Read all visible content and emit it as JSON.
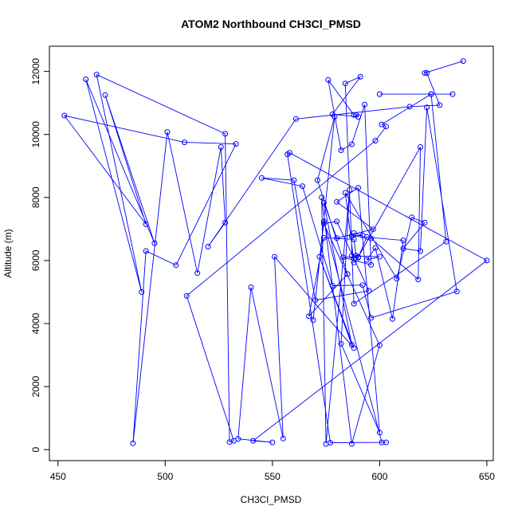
{
  "chart_data": {
    "type": "scatter",
    "title": "ATOM2 Northbound CH3Cl_PMSD",
    "xlabel": "CH3Cl_PMSD",
    "ylabel": "Altitude (m)",
    "xlim": [
      446,
      653
    ],
    "ylim": [
      -350,
      12800
    ],
    "xticks": [
      450,
      500,
      550,
      600,
      650
    ],
    "yticks": [
      0,
      2000,
      4000,
      6000,
      8000,
      10000,
      12000
    ],
    "grid": false,
    "legend": "none",
    "series": [
      {
        "connected": true,
        "color": "#0000ff",
        "marker": "open-circle",
        "x": [
          639,
          621,
          622,
          628,
          614,
          561,
          520,
          528,
          526,
          515,
          501,
          485,
          491,
          505,
          533,
          509,
          453,
          491,
          472,
          495,
          463,
          489,
          468,
          528,
          530,
          532,
          510,
          598,
          603,
          601,
          624,
          634,
          600,
          624,
          631,
          588,
          584,
          591,
          578,
          590,
          589,
          588,
          576,
          582,
          587,
          593,
          596,
          583,
          590,
          619,
          618,
          596,
          594,
          590,
          588,
          584,
          608,
          615,
          621,
          611,
          619,
          622,
          636,
          596,
          592,
          578,
          564,
          545,
          560,
          570,
          595,
          580,
          574,
          600,
          587,
          573,
          575,
          586,
          582,
          600,
          590,
          580,
          597,
          580,
          574,
          587,
          572,
          588,
          551,
          555,
          540,
          534,
          550,
          541,
          650,
          558,
          557,
          577,
          603,
          601,
          574,
          569,
          579,
          571,
          585,
          567,
          574,
          588,
          589,
          587,
          600,
          594,
          598,
          606,
          611,
          587,
          592,
          588
        ],
        "y": [
          12330,
          11950,
          11950,
          10930,
          10880,
          10490,
          6440,
          7200,
          9600,
          5600,
          10080,
          200,
          6300,
          5850,
          9700,
          9750,
          10600,
          7150,
          11250,
          6550,
          11750,
          5000,
          11900,
          10020,
          240,
          280,
          4880,
          9800,
          10250,
          10320,
          11280,
          11280,
          11280,
          11280,
          6600,
          4630,
          11620,
          11830,
          10640,
          10560,
          10620,
          10620,
          11730,
          9500,
          9690,
          10950,
          5860,
          6100,
          6110,
          9600,
          5400,
          6700,
          6750,
          6090,
          5940,
          8150,
          5420,
          7370,
          7200,
          6380,
          6300,
          10860,
          5020,
          4180,
          5220,
          5200,
          8360,
          8620,
          8550,
          4740,
          5040,
          7240,
          7170,
          3310,
          180,
          8000,
          180,
          8240,
          3360,
          540,
          8310,
          7860,
          6990,
          6710,
          7830,
          3330,
          6120,
          3220,
          6120,
          350,
          5150,
          340,
          230,
          280,
          6000,
          9420,
          9370,
          220,
          230,
          230,
          7240,
          4110,
          10560,
          8550,
          5570,
          4230,
          6720,
          6670,
          6160,
          6150,
          6120,
          6020,
          6400,
          4150,
          6640,
          6780,
          6800,
          6870
        ]
      }
    ]
  }
}
